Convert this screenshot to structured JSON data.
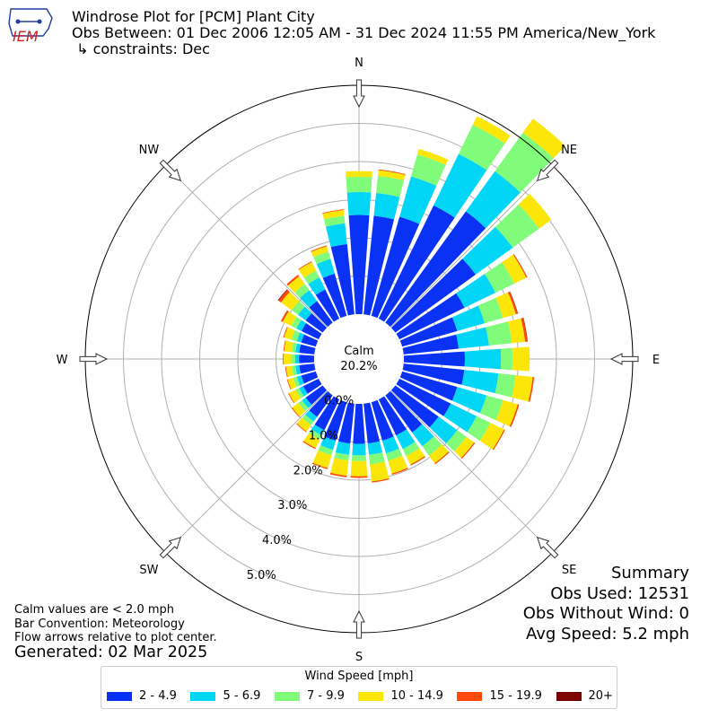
{
  "header": {
    "line1": "Windrose Plot for [PCM] Plant City",
    "line2": "Obs Between: 01 Dec 2006 12:05 AM - 31 Dec 2024 11:55 PM America/New_York",
    "line3": " ↳ constraints: Dec"
  },
  "logo": {
    "text": "IEM",
    "color": "#cc2222",
    "map_color": "#1f3ea3"
  },
  "notes": {
    "line1": "Calm values are < 2.0 mph",
    "line2": "Bar Convention: Meteorology",
    "line3": "Flow arrows relative to plot center.",
    "generated": "Generated: 02 Mar 2025"
  },
  "summary": {
    "title": "Summary",
    "obs_used": "Obs Used: 12531",
    "obs_without_wind": "Obs Without Wind: 0",
    "avg_speed": "Avg Speed: 5.2 mph"
  },
  "legend": {
    "title": "Wind Speed [mph]",
    "items": [
      {
        "label": "2 - 4.9",
        "color": "#0a32f5"
      },
      {
        "label": "5 - 6.9",
        "color": "#02d6f6"
      },
      {
        "label": "7 - 9.9",
        "color": "#80fb7a"
      },
      {
        "label": "10 - 14.9",
        "color": "#fce60a"
      },
      {
        "label": "15 - 19.9",
        "color": "#fe4a08"
      },
      {
        "label": "20+",
        "color": "#7e0000"
      }
    ]
  },
  "chart_data": {
    "type": "windrose",
    "calm": {
      "label": "Calm",
      "value_text": "20.2%",
      "value": 20.2
    },
    "compass_labels": [
      "N",
      "NE",
      "E",
      "SE",
      "S",
      "SW",
      "W",
      "NW"
    ],
    "radial_ticks": [
      "0.0%",
      "1.0%",
      "2.0%",
      "3.0%",
      "4.0%",
      "5.0%"
    ],
    "radial_max": 6.0,
    "grid": true,
    "bin_width_deg": 10,
    "direction_deg": [
      0,
      10,
      20,
      30,
      40,
      50,
      60,
      70,
      80,
      90,
      100,
      110,
      120,
      130,
      140,
      150,
      160,
      170,
      180,
      190,
      200,
      210,
      220,
      230,
      240,
      250,
      260,
      270,
      280,
      290,
      300,
      310,
      320,
      330,
      340,
      350
    ],
    "series": [
      {
        "name": "2 - 4.9",
        "color": "#0a32f5",
        "values": [
          2.6,
          2.6,
          2.7,
          3.3,
          3.6,
          2.6,
          1.9,
          1.5,
          1.45,
          1.6,
          1.6,
          1.5,
          1.5,
          1.4,
          1.2,
          1.05,
          1.05,
          1.05,
          1.05,
          1.05,
          1.05,
          0.9,
          0.7,
          0.55,
          0.45,
          0.4,
          0.4,
          0.4,
          0.4,
          0.4,
          0.5,
          0.55,
          0.7,
          0.85,
          1.15,
          1.85
        ]
      },
      {
        "name": "5 - 6.9",
        "color": "#02d6f6",
        "values": [
          0.6,
          0.6,
          1.1,
          1.5,
          1.3,
          1.2,
          0.9,
          0.75,
          0.8,
          0.95,
          0.9,
          0.8,
          0.75,
          0.6,
          0.45,
          0.4,
          0.35,
          0.3,
          0.3,
          0.3,
          0.25,
          0.15,
          0.15,
          0.12,
          0.12,
          0.12,
          0.1,
          0.1,
          0.1,
          0.12,
          0.15,
          0.25,
          0.35,
          0.35,
          0.4,
          0.55
        ]
      },
      {
        "name": "7 - 9.9",
        "color": "#80fb7a",
        "values": [
          0.4,
          0.45,
          0.6,
          0.85,
          1.25,
          0.85,
          0.55,
          0.5,
          0.6,
          0.3,
          0.45,
          0.45,
          0.4,
          0.3,
          0.3,
          0.2,
          0.2,
          0.25,
          0.15,
          0.15,
          0.15,
          0.12,
          0.12,
          0.12,
          0.1,
          0.1,
          0.1,
          0.1,
          0.1,
          0.15,
          0.15,
          0.2,
          0.2,
          0.2,
          0.2,
          0.2
        ]
      },
      {
        "name": "10 - 14.9",
        "color": "#fce60a",
        "values": [
          0.15,
          0.15,
          0.15,
          0.25,
          0.45,
          0.4,
          0.35,
          0.35,
          0.35,
          0.45,
          0.45,
          0.4,
          0.4,
          0.25,
          0.25,
          0.25,
          0.35,
          0.45,
          0.4,
          0.4,
          0.35,
          0.25,
          0.2,
          0.2,
          0.2,
          0.15,
          0.15,
          0.2,
          0.2,
          0.2,
          0.25,
          0.35,
          0.25,
          0.25,
          0.15,
          0.15
        ]
      },
      {
        "name": "15 - 19.9",
        "color": "#fe4a08",
        "values": [
          0,
          0.02,
          0,
          0,
          0,
          0,
          0.03,
          0.05,
          0.06,
          0,
          0.04,
          0.04,
          0.03,
          0.03,
          0.03,
          0.03,
          0.03,
          0.03,
          0.04,
          0.04,
          0.03,
          0.03,
          0.02,
          0.02,
          0.02,
          0.02,
          0.02,
          0.02,
          0.02,
          0.02,
          0.05,
          0.08,
          0.05,
          0.02,
          0.02,
          0.02
        ]
      },
      {
        "name": "20+",
        "color": "#7e0000",
        "values": [
          0,
          0,
          0,
          0,
          0,
          0,
          0,
          0.01,
          0.01,
          0,
          0,
          0,
          0,
          0,
          0,
          0,
          0,
          0,
          0,
          0,
          0,
          0,
          0,
          0,
          0,
          0,
          0,
          0,
          0,
          0,
          0,
          0.02,
          0,
          0,
          0,
          0
        ]
      }
    ]
  }
}
